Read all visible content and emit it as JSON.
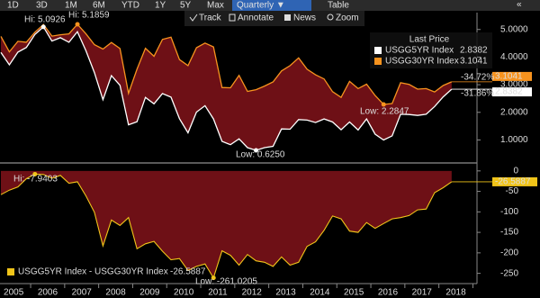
{
  "toolbar": {
    "ranges": [
      "1D",
      "3D",
      "1M",
      "6M",
      "YTD",
      "1Y",
      "5Y",
      "Max"
    ],
    "period": "Quarterly ▼",
    "table": "Table",
    "collapse": "«",
    "tools": [
      "Track",
      "Annotate",
      "News",
      "Zoom"
    ]
  },
  "chart_data": [
    {
      "type": "line",
      "legend_title": "Last Price",
      "fill_color": "#6e1016",
      "series": [
        {
          "name": "USGG5YR Index",
          "color": "#ffffff",
          "change": "-31.86%",
          "values": [
            4.17,
            3.72,
            4.18,
            4.35,
            4.82,
            5.0926,
            4.58,
            4.7,
            4.54,
            4.92,
            4.23,
            3.44,
            2.46,
            3.33,
            2.98,
            1.55,
            1.66,
            2.54,
            2.31,
            2.68,
            2.55,
            1.77,
            1.26,
            2.01,
            2.24,
            1.76,
            0.95,
            0.83,
            1.04,
            0.72,
            0.625,
            0.72,
            0.77,
            1.4,
            1.39,
            1.74,
            1.72,
            1.63,
            1.76,
            1.65,
            1.37,
            1.65,
            1.36,
            1.76,
            1.21,
            1.0,
            1.15,
            1.93,
            1.92,
            1.89,
            1.93,
            2.21,
            2.56,
            2.8382
          ]
        },
        {
          "name": "USGG30YR Index",
          "color": "#f7931e",
          "change": "-34.72%",
          "values": [
            4.75,
            4.19,
            4.57,
            4.54,
            4.9,
            5.18,
            4.76,
            4.81,
            4.84,
            5.1859,
            4.84,
            4.45,
            4.29,
            4.53,
            4.31,
            2.69,
            3.56,
            4.32,
            4.03,
            4.64,
            4.72,
            3.91,
            3.69,
            4.34,
            4.51,
            4.3702,
            2.9,
            2.89,
            3.34,
            2.76,
            2.82,
            2.95,
            3.1,
            3.5,
            3.69,
            3.97,
            3.56,
            3.36,
            3.21,
            2.75,
            2.54,
            3.12,
            2.86,
            3.02,
            2.61,
            2.2847,
            2.32,
            3.07,
            3.01,
            2.84,
            2.86,
            2.74,
            2.97,
            3.1041
          ]
        }
      ],
      "annotations": [
        "Hi: 5.0926",
        "Hi: 5.1859",
        "Low: 0.6250",
        "Low: 2.2847"
      ],
      "ylim": [
        0.2,
        5.35
      ],
      "yticks": [
        {
          "value": 1,
          "label": "1.0000"
        },
        {
          "value": 2,
          "label": "2.0000"
        },
        {
          "value": 3,
          "label": "3.0000"
        },
        {
          "value": 4,
          "label": "4.0000"
        },
        {
          "value": 5,
          "label": "5.0000"
        }
      ]
    },
    {
      "type": "area",
      "fill_color": "#6e1016",
      "categories": [
        null,
        "2005",
        null,
        null,
        null,
        "2006",
        null,
        null,
        null,
        "2007",
        null,
        null,
        null,
        "2008",
        null,
        null,
        null,
        "2009",
        null,
        null,
        null,
        "2010",
        null,
        null,
        null,
        "2011",
        null,
        null,
        null,
        "2012",
        null,
        null,
        null,
        "2013",
        null,
        null,
        null,
        "2014",
        null,
        null,
        null,
        "2015",
        null,
        null,
        null,
        "2016",
        null,
        null,
        null,
        "2017",
        null,
        null,
        null,
        "2018"
      ],
      "series": [
        {
          "name": "USGG5YR Index - USGG30YR Index",
          "color": "#f0c419",
          "values": [
            -58,
            -47,
            -39,
            -19,
            -7.9403,
            -8.7,
            -18,
            -11,
            -30,
            -26.6,
            -61,
            -101,
            -183,
            -120,
            -133,
            -114,
            -190,
            -178,
            -172,
            -196,
            -217,
            -214,
            -243,
            -233,
            -227,
            -261.0205,
            -195,
            -206,
            -230,
            -204,
            -219.5,
            -223,
            -233,
            -210,
            -230,
            -223,
            -184,
            -173,
            -145,
            -110,
            -117,
            -147,
            -150,
            -126,
            -140,
            -128.5,
            -117,
            -114,
            -109,
            -95,
            -93,
            -53,
            -41,
            -26.5887
          ]
        }
      ],
      "annotations": [
        "Hi: -7.9403",
        "Low: -261.0205"
      ],
      "ylim": [
        -275,
        15
      ],
      "yticks": [
        0,
        -50,
        -100,
        -150,
        -200,
        -250
      ]
    }
  ]
}
